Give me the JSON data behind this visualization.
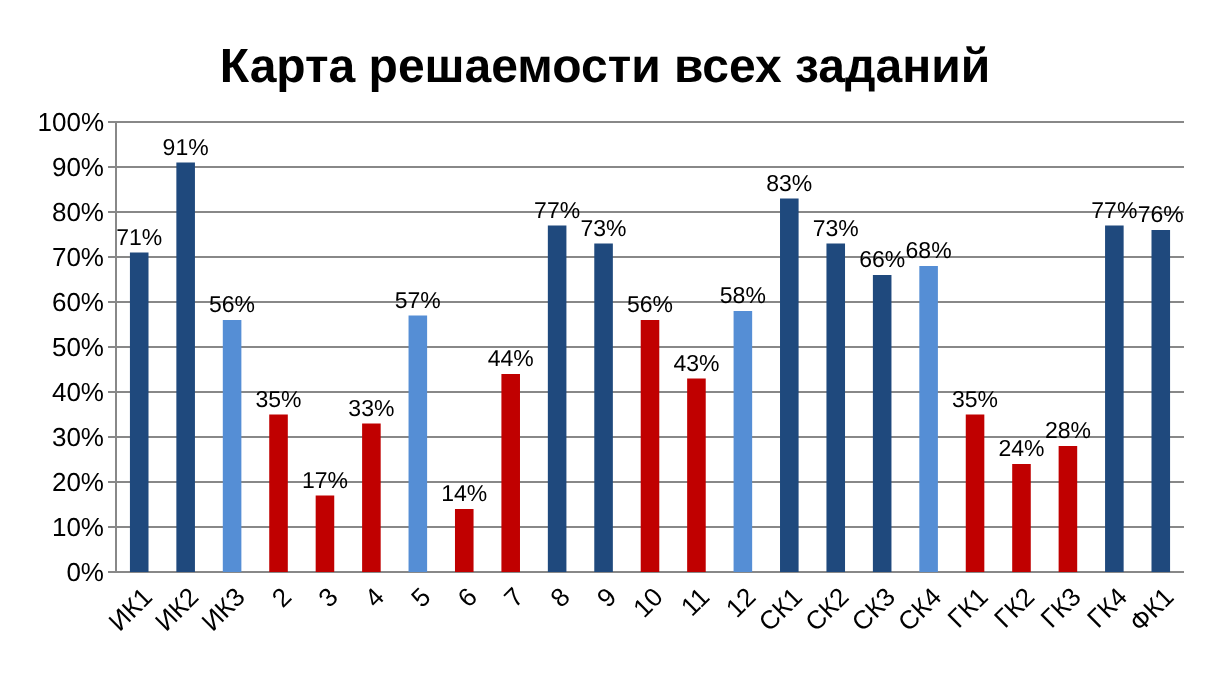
{
  "chart_data": {
    "type": "bar",
    "title": "Карта решаемости всех заданий",
    "categories": [
      "ИК1",
      "ИК2",
      "ИК3",
      "2",
      "3",
      "4",
      "5",
      "6",
      "7",
      "8",
      "9",
      "10",
      "11",
      "12",
      "СК1",
      "СК2",
      "СК3",
      "СК4",
      "ГК1",
      "ГК2",
      "ГК3",
      "ГК4",
      "ФК1"
    ],
    "values": [
      71,
      91,
      56,
      35,
      17,
      33,
      57,
      14,
      44,
      77,
      73,
      56,
      43,
      58,
      83,
      73,
      66,
      68,
      35,
      24,
      28,
      77,
      76
    ],
    "colors": [
      "#1f497d",
      "#1f497d",
      "#558ed5",
      "#c00000",
      "#c00000",
      "#c00000",
      "#558ed5",
      "#c00000",
      "#c00000",
      "#1f497d",
      "#1f497d",
      "#c00000",
      "#c00000",
      "#558ed5",
      "#1f497d",
      "#1f497d",
      "#1f497d",
      "#558ed5",
      "#c00000",
      "#c00000",
      "#c00000",
      "#1f497d",
      "#1f497d"
    ],
    "value_labels": [
      "71%",
      "91%",
      "56%",
      "35%",
      "17%",
      "33%",
      "57%",
      "14%",
      "44%",
      "77%",
      "73%",
      "56%",
      "43%",
      "58%",
      "83%",
      "73%",
      "66%",
      "68%",
      "35%",
      "24%",
      "28%",
      "77%",
      "76%"
    ],
    "ylim": [
      0,
      100
    ],
    "yticks": [
      {
        "value": 0,
        "label": "0%"
      },
      {
        "value": 10,
        "label": "10%"
      },
      {
        "value": 20,
        "label": "20%"
      },
      {
        "value": 30,
        "label": "30%"
      },
      {
        "value": 40,
        "label": "40%"
      },
      {
        "value": 50,
        "label": "50%"
      },
      {
        "value": 60,
        "label": "60%"
      },
      {
        "value": 70,
        "label": "70%"
      },
      {
        "value": 80,
        "label": "80%"
      },
      {
        "value": 90,
        "label": "90%"
      },
      {
        "value": 100,
        "label": "100%"
      }
    ],
    "grid": "y"
  }
}
